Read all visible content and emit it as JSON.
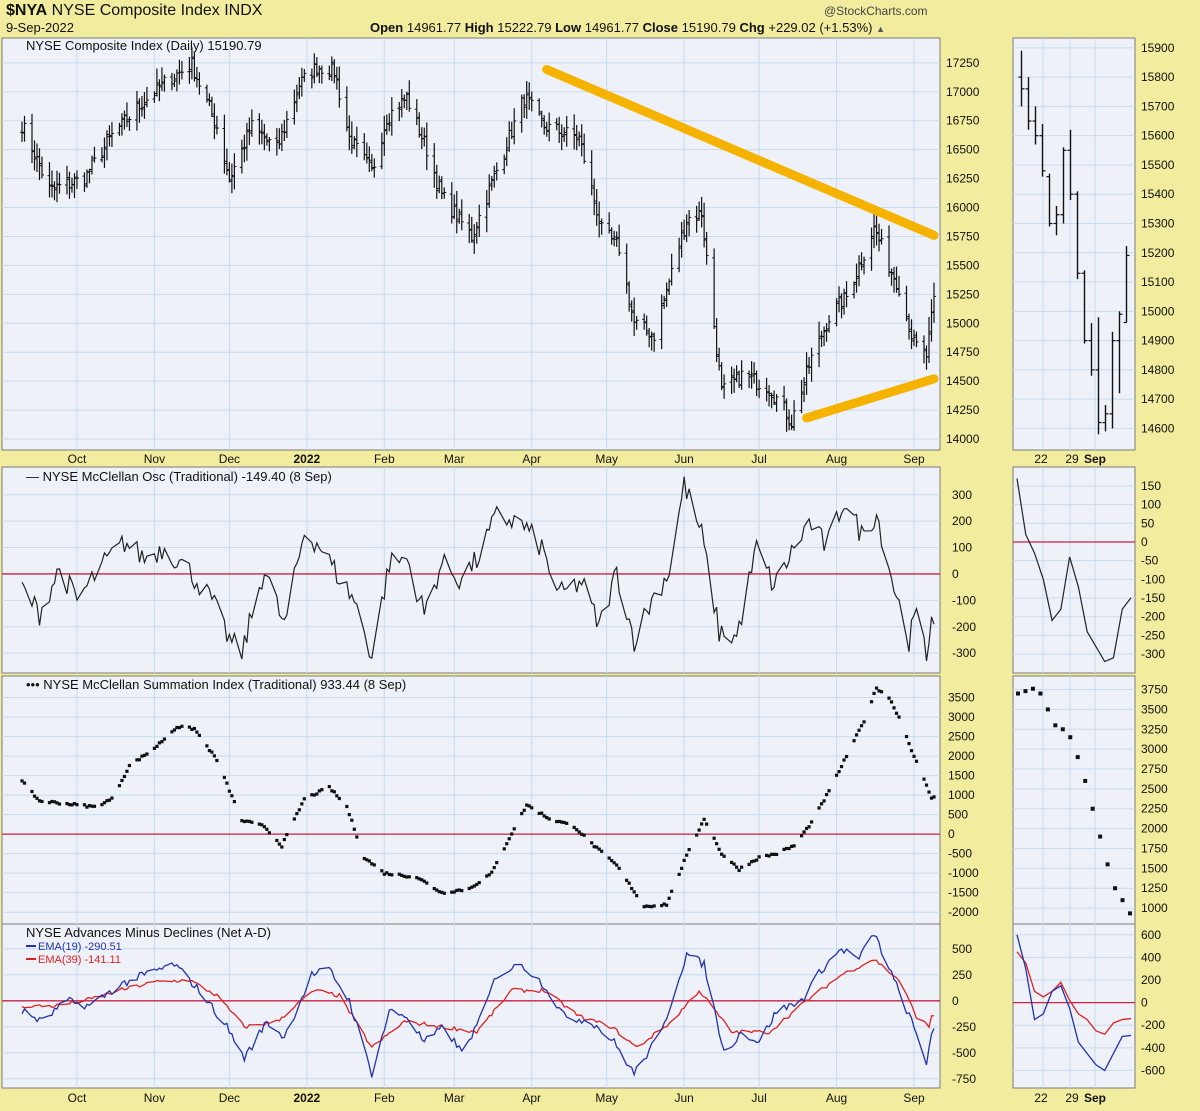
{
  "header": {
    "symbol": "$NYA",
    "name": "NYSE Composite Index",
    "exchange": "INDX",
    "date": "9-Sep-2022",
    "watermark": "@StockCharts.com",
    "open_label": "Open",
    "open": "14961.77",
    "high_label": "High",
    "high": "15222.79",
    "low_label": "Low",
    "low": "14961.77",
    "close_label": "Close",
    "close": "15190.79",
    "chg_label": "Chg",
    "chg": "+229.02 (+1.53%)",
    "more_icon": "triangle-up-icon"
  },
  "colors": {
    "background": "#f2ed9e",
    "panel": "#eef1f8",
    "grid": "#c6dcef",
    "price_bar": "#111111",
    "zero_line": "#cc2244",
    "trendline": "#f5b300",
    "ema19": "#2233aa",
    "ema39": "#dd2222"
  },
  "x_axis": {
    "labels": [
      "Oct",
      "Nov",
      "Dec",
      "2022",
      "Feb",
      "Mar",
      "Apr",
      "May",
      "Jun",
      "Jul",
      "Aug",
      "Sep"
    ],
    "zoom_labels": [
      "22",
      "29",
      "Sep"
    ]
  },
  "chart_data": [
    {
      "type": "ohlc",
      "title": "NYSE Composite Index (Daily) 15190.79",
      "y_ticks": [
        14000,
        14250,
        14500,
        14750,
        15000,
        15250,
        15500,
        15750,
        16000,
        16250,
        16500,
        16750,
        17000,
        17250
      ],
      "ylim": [
        13940,
        17430
      ],
      "trendlines": [
        {
          "from": [
            "2022-04-01",
            17020
          ],
          "to": [
            "2022-09-09",
            15760
          ]
        },
        {
          "from": [
            "2022-07-14",
            14010
          ],
          "to": [
            "2022-09-09",
            14520
          ]
        }
      ],
      "anchors": [
        [
          "2021-09-09",
          16720
        ],
        [
          "2021-09-20",
          16150
        ],
        [
          "2021-10-04",
          16250
        ],
        [
          "2021-10-15",
          16620
        ],
        [
          "2021-10-27",
          16900
        ],
        [
          "2021-11-08",
          17130
        ],
        [
          "2021-11-16",
          17230
        ],
        [
          "2021-11-26",
          16700
        ],
        [
          "2021-12-01",
          16250
        ],
        [
          "2021-12-10",
          16700
        ],
        [
          "2021-12-20",
          16500
        ],
        [
          "2021-12-29",
          17060
        ],
        [
          "2022-01-05",
          17220
        ],
        [
          "2022-01-12",
          17180
        ],
        [
          "2022-01-18",
          16600
        ],
        [
          "2022-01-27",
          16300
        ],
        [
          "2022-02-02",
          16780
        ],
        [
          "2022-02-10",
          16950
        ],
        [
          "2022-02-18",
          16500
        ],
        [
          "2022-02-24",
          16100
        ],
        [
          "2022-03-08",
          15750
        ],
        [
          "2022-03-15",
          16150
        ],
        [
          "2022-03-29",
          16950
        ],
        [
          "2022-04-06",
          16700
        ],
        [
          "2022-04-20",
          16600
        ],
        [
          "2022-04-29",
          15800
        ],
        [
          "2022-05-06",
          15650
        ],
        [
          "2022-05-12",
          15000
        ],
        [
          "2022-05-20",
          14900
        ],
        [
          "2022-06-02",
          15900
        ],
        [
          "2022-06-08",
          15950
        ],
        [
          "2022-06-16",
          14400
        ],
        [
          "2022-06-24",
          14550
        ],
        [
          "2022-07-05",
          14450
        ],
        [
          "2022-07-14",
          14150
        ],
        [
          "2022-07-22",
          14700
        ],
        [
          "2022-07-29",
          15050
        ],
        [
          "2022-08-05",
          15230
        ],
        [
          "2022-08-16",
          15820
        ],
        [
          "2022-08-23",
          15450
        ],
        [
          "2022-08-26",
          15320
        ],
        [
          "2022-09-01",
          14820
        ],
        [
          "2022-09-06",
          14720
        ],
        [
          "2022-09-09",
          15190
        ]
      ],
      "zoom_y_ticks": [
        14600,
        14700,
        14800,
        14900,
        15000,
        15100,
        15200,
        15300,
        15400,
        15500,
        15600,
        15700,
        15800,
        15900
      ],
      "zoom_ylim": [
        14540,
        15920
      ],
      "zoom_bars": [
        {
          "o": 15800,
          "h": 15890,
          "l": 15700,
          "c": 15760
        },
        {
          "o": 15760,
          "h": 15800,
          "l": 15620,
          "c": 15650
        },
        {
          "o": 15650,
          "h": 15700,
          "l": 15570,
          "c": 15600
        },
        {
          "o": 15600,
          "h": 15640,
          "l": 15460,
          "c": 15480
        },
        {
          "o": 15460,
          "h": 15470,
          "l": 15290,
          "c": 15300
        },
        {
          "o": 15300,
          "h": 15360,
          "l": 15260,
          "c": 15330
        },
        {
          "o": 15330,
          "h": 15560,
          "l": 15300,
          "c": 15550
        },
        {
          "o": 15550,
          "h": 15620,
          "l": 15380,
          "c": 15400
        },
        {
          "o": 15400,
          "h": 15410,
          "l": 15110,
          "c": 15130
        },
        {
          "o": 15130,
          "h": 15140,
          "l": 14890,
          "c": 14900
        },
        {
          "o": 14900,
          "h": 14960,
          "l": 14780,
          "c": 14800
        },
        {
          "o": 14800,
          "h": 14980,
          "l": 14580,
          "c": 14620
        },
        {
          "o": 14620,
          "h": 14680,
          "l": 14590,
          "c": 14650
        },
        {
          "o": 14650,
          "h": 14930,
          "l": 14600,
          "c": 14900
        },
        {
          "o": 14900,
          "h": 15000,
          "l": 14720,
          "c": 14990
        },
        {
          "o": 14961.77,
          "h": 15222.79,
          "l": 14961.77,
          "c": 15190.79
        }
      ]
    },
    {
      "type": "line",
      "title": "NYSE McClellan Osc (Traditional) -149.40 (8 Sep)",
      "y_ticks": [
        -300,
        -200,
        -100,
        0,
        100,
        200,
        300
      ],
      "ylim": [
        -360,
        390
      ],
      "zero_line": 0,
      "anchors": [
        [
          "2021-09-09",
          -50
        ],
        [
          "2021-09-16",
          -150
        ],
        [
          "2021-09-24",
          20
        ],
        [
          "2021-10-01",
          -100
        ],
        [
          "2021-10-11",
          30
        ],
        [
          "2021-10-20",
          120
        ],
        [
          "2021-10-28",
          60
        ],
        [
          "2021-11-05",
          100
        ],
        [
          "2021-11-15",
          10
        ],
        [
          "2021-11-24",
          -100
        ],
        [
          "2021-12-01",
          -250
        ],
        [
          "2021-12-06",
          -300
        ],
        [
          "2021-12-15",
          20
        ],
        [
          "2021-12-23",
          -200
        ],
        [
          "2021-12-31",
          160
        ],
        [
          "2022-01-06",
          110
        ],
        [
          "2022-01-13",
          0
        ],
        [
          "2022-01-20",
          -100
        ],
        [
          "2022-01-27",
          -310
        ],
        [
          "2022-02-03",
          40
        ],
        [
          "2022-02-10",
          60
        ],
        [
          "2022-02-17",
          -150
        ],
        [
          "2022-02-24",
          40
        ],
        [
          "2022-03-03",
          -20
        ],
        [
          "2022-03-10",
          50
        ],
        [
          "2022-03-18",
          220
        ],
        [
          "2022-03-28",
          190
        ],
        [
          "2022-04-05",
          100
        ],
        [
          "2022-04-12",
          -80
        ],
        [
          "2022-04-21",
          -30
        ],
        [
          "2022-04-28",
          -200
        ],
        [
          "2022-05-05",
          10
        ],
        [
          "2022-05-12",
          -250
        ],
        [
          "2022-05-19",
          -100
        ],
        [
          "2022-05-26",
          10
        ],
        [
          "2022-06-01",
          340
        ],
        [
          "2022-06-08",
          150
        ],
        [
          "2022-06-15",
          -220
        ],
        [
          "2022-06-22",
          -240
        ],
        [
          "2022-06-30",
          100
        ],
        [
          "2022-07-07",
          -50
        ],
        [
          "2022-07-14",
          80
        ],
        [
          "2022-07-21",
          200
        ],
        [
          "2022-07-28",
          100
        ],
        [
          "2022-08-04",
          280
        ],
        [
          "2022-08-11",
          150
        ],
        [
          "2022-08-17",
          230
        ],
        [
          "2022-08-24",
          -50
        ],
        [
          "2022-08-30",
          -250
        ],
        [
          "2022-09-02",
          -150
        ],
        [
          "2022-09-06",
          -320
        ],
        [
          "2022-09-08",
          -149.4
        ]
      ],
      "zoom_y_ticks": [
        -300,
        -250,
        -200,
        -150,
        -100,
        -50,
        0,
        50,
        100,
        150
      ],
      "zoom_ylim": [
        -340,
        190
      ],
      "zoom_values": [
        170,
        20,
        -30,
        -100,
        -210,
        -180,
        -40,
        -120,
        -240,
        -280,
        -320,
        -310,
        -180,
        -149.4
      ]
    },
    {
      "type": "scatter",
      "title": "NYSE McClellan Summation Index (Traditional) 933.44 (8 Sep)",
      "y_ticks": [
        -2000,
        -1500,
        -1000,
        -500,
        0,
        500,
        1000,
        1500,
        2000,
        2500,
        3000,
        3500
      ],
      "ylim": [
        -2200,
        3950
      ],
      "zero_line": 0,
      "anchors": [
        [
          "2021-09-09",
          1350
        ],
        [
          "2021-09-16",
          850
        ],
        [
          "2021-09-24",
          800
        ],
        [
          "2021-10-08",
          700
        ],
        [
          "2021-10-15",
          900
        ],
        [
          "2021-10-22",
          1750
        ],
        [
          "2021-11-01",
          2200
        ],
        [
          "2021-11-10",
          2750
        ],
        [
          "2021-11-17",
          2700
        ],
        [
          "2021-11-26",
          1900
        ],
        [
          "2021-12-06",
          350
        ],
        [
          "2021-12-15",
          200
        ],
        [
          "2021-12-22",
          -300
        ],
        [
          "2021-12-31",
          900
        ],
        [
          "2022-01-10",
          1200
        ],
        [
          "2022-01-17",
          700
        ],
        [
          "2022-01-24",
          -600
        ],
        [
          "2022-02-01",
          -1000
        ],
        [
          "2022-02-14",
          -1100
        ],
        [
          "2022-02-24",
          -1500
        ],
        [
          "2022-03-07",
          -1400
        ],
        [
          "2022-03-16",
          -1000
        ],
        [
          "2022-03-23",
          -100
        ],
        [
          "2022-03-30",
          750
        ],
        [
          "2022-04-08",
          400
        ],
        [
          "2022-04-18",
          200
        ],
        [
          "2022-04-26",
          -300
        ],
        [
          "2022-05-05",
          -800
        ],
        [
          "2022-05-16",
          -1850
        ],
        [
          "2022-05-25",
          -1800
        ],
        [
          "2022-06-01",
          -700
        ],
        [
          "2022-06-09",
          400
        ],
        [
          "2022-06-16",
          -500
        ],
        [
          "2022-06-23",
          -900
        ],
        [
          "2022-07-01",
          -600
        ],
        [
          "2022-07-08",
          -500
        ],
        [
          "2022-07-15",
          -300
        ],
        [
          "2022-07-22",
          300
        ],
        [
          "2022-07-29",
          1100
        ],
        [
          "2022-08-05",
          2000
        ],
        [
          "2022-08-12",
          2900
        ],
        [
          "2022-08-17",
          3750
        ],
        [
          "2022-08-22",
          3500
        ],
        [
          "2022-08-26",
          3000
        ],
        [
          "2022-09-01",
          2000
        ],
        [
          "2022-09-08",
          933.44
        ]
      ],
      "zoom_y_ticks": [
        1000,
        1250,
        1500,
        1750,
        2000,
        2250,
        2500,
        2750,
        3000,
        3250,
        3500,
        3750
      ],
      "zoom_ylim": [
        850,
        3870
      ],
      "zoom_values": [
        3700,
        3730,
        3760,
        3700,
        3500,
        3300,
        3250,
        3150,
        2900,
        2600,
        2250,
        1900,
        1550,
        1250,
        1100,
        933.44
      ]
    },
    {
      "type": "line",
      "title": "NYSE Advances Minus Declines (Net A-D)",
      "series_legend": [
        {
          "name": "EMA(19) -290.51",
          "color": "#2233aa"
        },
        {
          "name": "EMA(39) -141.11",
          "color": "#dd2222"
        }
      ],
      "y_ticks": [
        -750,
        -500,
        -250,
        0,
        250,
        500
      ],
      "ylim": [
        -800,
        700
      ],
      "zero_line": 0,
      "ema19_anchors": [
        [
          "2021-09-09",
          -100
        ],
        [
          "2021-09-17",
          -200
        ],
        [
          "2021-09-27",
          0
        ],
        [
          "2021-10-06",
          -50
        ],
        [
          "2021-10-18",
          150
        ],
        [
          "2021-10-28",
          250
        ],
        [
          "2021-11-09",
          350
        ],
        [
          "2021-11-19",
          100
        ],
        [
          "2021-11-30",
          -250
        ],
        [
          "2021-12-07",
          -550
        ],
        [
          "2021-12-16",
          -200
        ],
        [
          "2021-12-23",
          -350
        ],
        [
          "2022-01-03",
          250
        ],
        [
          "2022-01-10",
          300
        ],
        [
          "2022-01-18",
          0
        ],
        [
          "2022-01-27",
          -700
        ],
        [
          "2022-02-03",
          -100
        ],
        [
          "2022-02-10",
          -150
        ],
        [
          "2022-02-17",
          -400
        ],
        [
          "2022-02-25",
          -250
        ],
        [
          "2022-03-04",
          -500
        ],
        [
          "2022-03-11",
          -200
        ],
        [
          "2022-03-18",
          250
        ],
        [
          "2022-03-28",
          350
        ],
        [
          "2022-04-06",
          150
        ],
        [
          "2022-04-14",
          -150
        ],
        [
          "2022-04-25",
          -200
        ],
        [
          "2022-05-04",
          -400
        ],
        [
          "2022-05-12",
          -700
        ],
        [
          "2022-05-23",
          -300
        ],
        [
          "2022-06-02",
          450
        ],
        [
          "2022-06-09",
          350
        ],
        [
          "2022-06-17",
          -500
        ],
        [
          "2022-06-24",
          -300
        ],
        [
          "2022-07-01",
          -400
        ],
        [
          "2022-07-08",
          -100
        ],
        [
          "2022-07-18",
          0
        ],
        [
          "2022-07-26",
          300
        ],
        [
          "2022-08-03",
          500
        ],
        [
          "2022-08-10",
          400
        ],
        [
          "2022-08-16",
          650
        ],
        [
          "2022-08-24",
          200
        ],
        [
          "2022-08-31",
          -200
        ],
        [
          "2022-09-06",
          -600
        ],
        [
          "2022-09-08",
          -290.51
        ]
      ],
      "ema39_anchors": [
        [
          "2021-09-09",
          -50
        ],
        [
          "2021-09-22",
          -50
        ],
        [
          "2021-10-04",
          0
        ],
        [
          "2021-10-18",
          100
        ],
        [
          "2021-11-01",
          180
        ],
        [
          "2021-11-15",
          200
        ],
        [
          "2021-11-26",
          50
        ],
        [
          "2021-12-07",
          -250
        ],
        [
          "2021-12-20",
          -200
        ],
        [
          "2022-01-04",
          100
        ],
        [
          "2022-01-14",
          50
        ],
        [
          "2022-01-27",
          -450
        ],
        [
          "2022-02-09",
          -200
        ],
        [
          "2022-02-25",
          -250
        ],
        [
          "2022-03-10",
          -300
        ],
        [
          "2022-03-24",
          100
        ],
        [
          "2022-04-06",
          100
        ],
        [
          "2022-04-20",
          -150
        ],
        [
          "2022-05-03",
          -250
        ],
        [
          "2022-05-13",
          -450
        ],
        [
          "2022-05-27",
          -200
        ],
        [
          "2022-06-07",
          100
        ],
        [
          "2022-06-20",
          -300
        ],
        [
          "2022-07-05",
          -300
        ],
        [
          "2022-07-20",
          0
        ],
        [
          "2022-08-03",
          250
        ],
        [
          "2022-08-16",
          400
        ],
        [
          "2022-08-26",
          200
        ],
        [
          "2022-09-02",
          -150
        ],
        [
          "2022-09-07",
          -250
        ],
        [
          "2022-09-08",
          -141.11
        ]
      ],
      "zoom_y_ticks": [
        -600,
        -400,
        -200,
        0,
        200,
        400,
        600
      ],
      "zoom_ylim": [
        -720,
        660
      ],
      "zoom_ema19": [
        600,
        300,
        -150,
        -100,
        100,
        150,
        -50,
        -350,
        -450,
        -550,
        -600,
        -450,
        -300,
        -290.51
      ],
      "zoom_ema39": [
        450,
        350,
        100,
        50,
        100,
        180,
        20,
        -100,
        -150,
        -250,
        -280,
        -180,
        -150,
        -141.11
      ]
    }
  ]
}
